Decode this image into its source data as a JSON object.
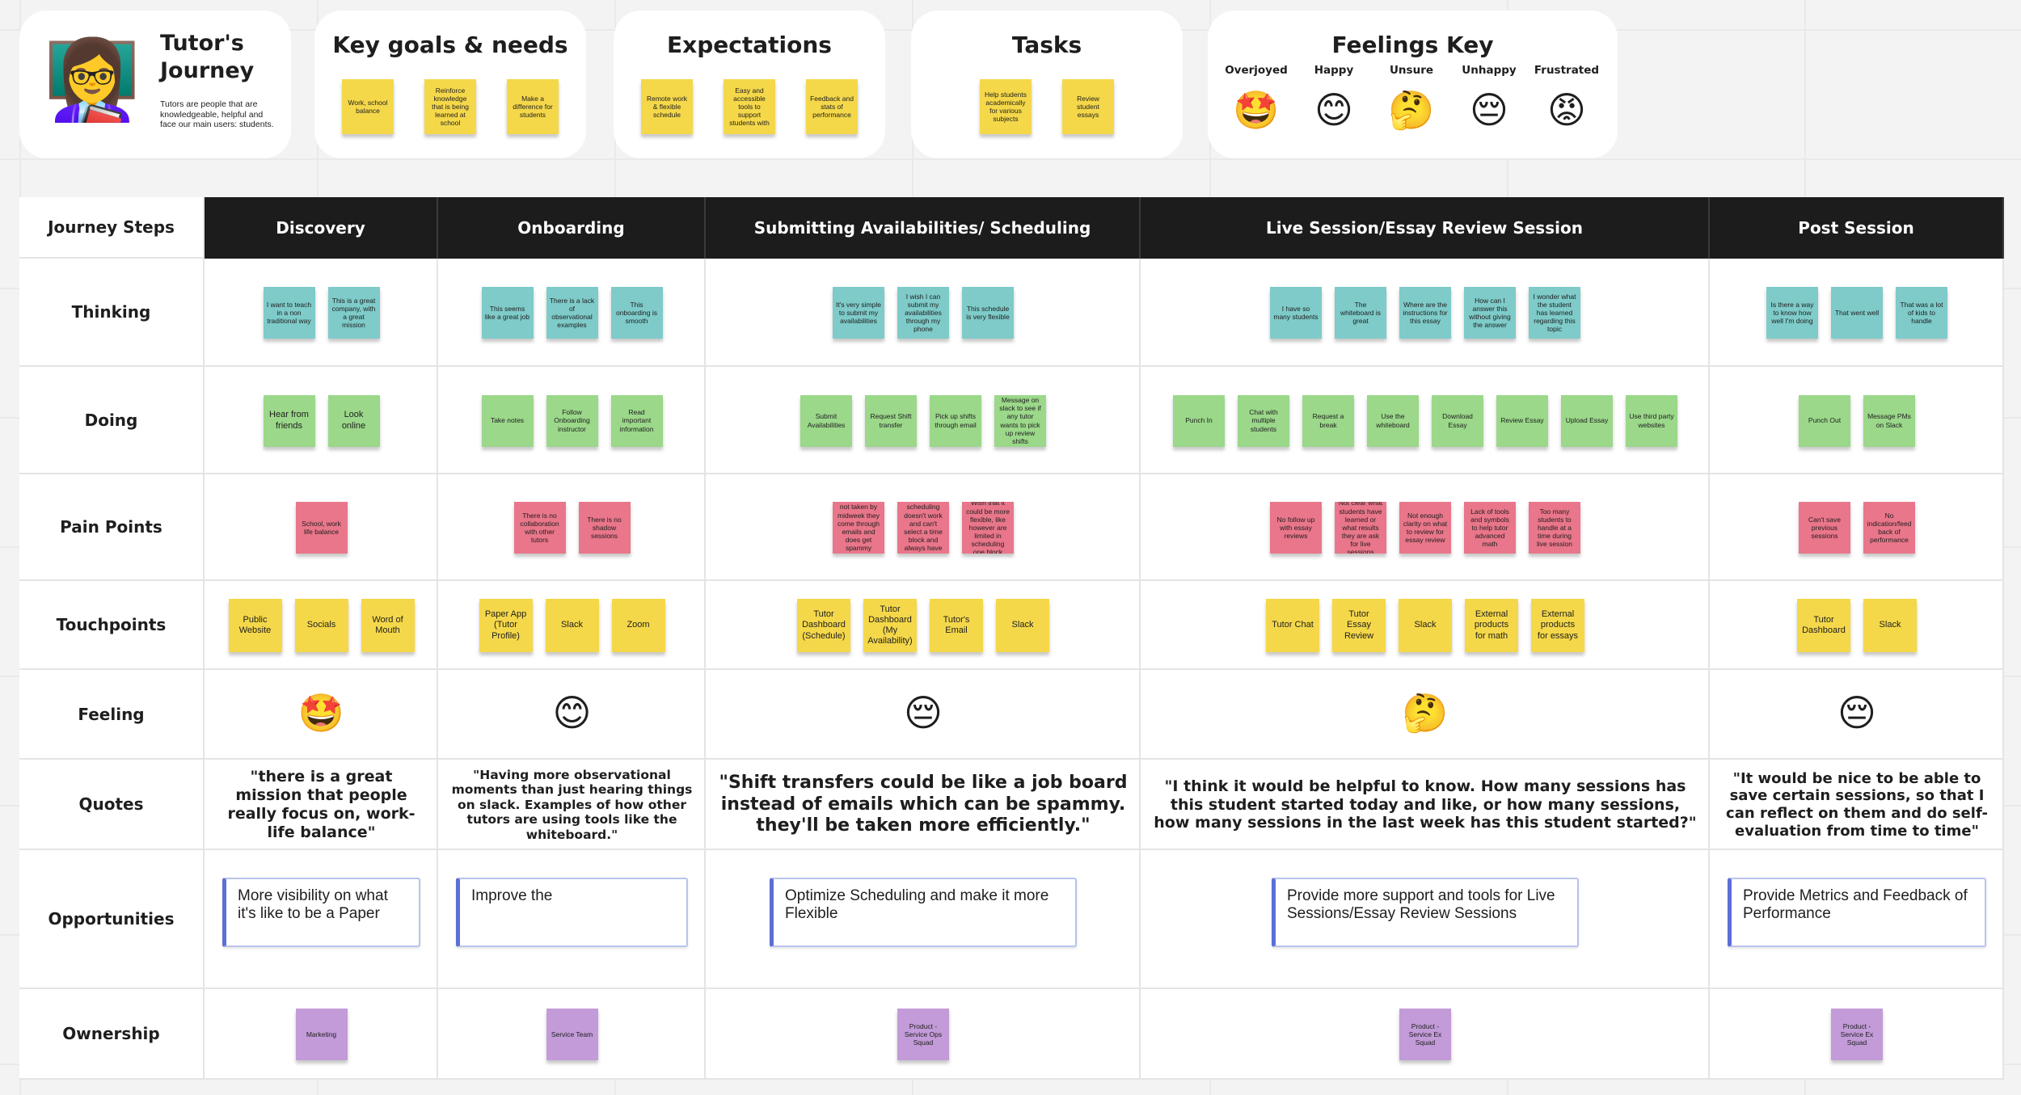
{
  "persona": {
    "icon": "👩‍🏫",
    "title": "Tutor's Journey",
    "description": "Tutors are people that are knowledgeable, helpful and face our main users: students."
  },
  "cards": [
    {
      "title": "Key goals & needs",
      "notes": [
        "Work, school balance",
        "Reinforce knowledge that is being learned at school",
        "Make a difference for students"
      ]
    },
    {
      "title": "Expectations",
      "notes": [
        "Remote work & flexible schedule",
        "Easy and accessible tools to support students with",
        "Feedback and stats of performance"
      ]
    },
    {
      "title": "Tasks",
      "notes": [
        "Help students academically for various subjects",
        "Review student essays"
      ]
    }
  ],
  "feelings_key": {
    "title": "Feelings Key",
    "items": [
      {
        "label": "Overjoyed",
        "emoji": "🤩"
      },
      {
        "label": "Happy",
        "emoji": "😊"
      },
      {
        "label": "Unsure",
        "emoji": "🤔"
      },
      {
        "label": "Unhappy",
        "emoji": "😔"
      },
      {
        "label": "Frustrated",
        "emoji": "😡"
      }
    ]
  },
  "table": {
    "corner": "Journey Steps",
    "stages": [
      "Discovery",
      "Onboarding",
      "Submitting Availabilities/ Scheduling",
      "Live Session/Essay Review Session",
      "Post Session"
    ],
    "rows": [
      {
        "label": "Thinking",
        "cells": [
          [
            "I want to teach in a non traditional way",
            "This is a great company, with a great mission"
          ],
          [
            "This seems like a great job",
            "There is a lack of observational examples",
            "This onboarding is smooth"
          ],
          [
            "It's very simple to submit my availabilities",
            "I wish I can submit my availabilities through my phone",
            "This schedule is very flexible"
          ],
          [
            "I have so many students",
            "The whiteboard is great",
            "Where are the instructions for this essay",
            "How can I answer this without giving the answer",
            "I wonder what the student has learned regarding this topic"
          ],
          [
            "Is there a way to know how well I'm doing",
            "That went well",
            "That was a lot of kids to handle"
          ]
        ]
      },
      {
        "label": "Doing",
        "cells": [
          [
            "Hear from friends",
            "Look online"
          ],
          [
            "Take notes",
            "Follow Onboarding instructor",
            "Read important information"
          ],
          [
            "Submit Availabilities",
            "Request Shift transfer",
            "Pick up shifts through email",
            "Message on slack to see if any tutor wants to pick up review shifts"
          ],
          [
            "Punch In",
            "Chat with multiple students",
            "Request a break",
            "Use the whiteboard",
            "Download Essay",
            "Review Essay",
            "Upload Essay",
            "Use third party websites"
          ],
          [
            "Punch Out",
            "Message PMs on Slack"
          ]
        ]
      },
      {
        "label": "Pain Points",
        "cells": [
          [
            "School, work life balance"
          ],
          [
            "There is no collaboration with other tutors",
            "There is no shadow sessions"
          ],
          [
            "If the shifts are not taken by midweek they come through emails and does get spammy because of it",
            "The mobile scheduling doesn't work and can't select a time block and always have to use a laptop",
            "Wish that it could be more flexible, like however are limited in scheduling one block"
          ],
          [
            "No follow up with essay reviews",
            "Not clear what students have learned or what results they are ask for live sessions",
            "Not enough clarity on what to review for essay review",
            "Lack of tools and symbols to help tutor advanced math",
            "Too many students to handle at a time during live session"
          ],
          [
            "Can't save previous sessions",
            "No indication/feedback of performance"
          ]
        ]
      },
      {
        "label": "Touchpoints",
        "cells": [
          [
            "Public Website",
            "Socials",
            "Word of Mouth"
          ],
          [
            "Paper App (Tutor Profile)",
            "Slack",
            "Zoom"
          ],
          [
            "Tutor Dashboard (Schedule)",
            "Tutor Dashboard (My Availability)",
            "Tutor's Email",
            "Slack"
          ],
          [
            "Tutor Chat",
            "Tutor Essay Review",
            "Slack",
            "External products for math",
            "External products for essays"
          ],
          [
            "Tutor Dashboard",
            "Slack"
          ]
        ]
      },
      {
        "label": "Feeling",
        "cells": [
          "🤩",
          "😊",
          "😔",
          "🤔",
          "😔"
        ]
      },
      {
        "label": "Quotes",
        "cells": [
          "\"there is a great mission that people really focus on, work-life balance\"",
          "\"Having more observational moments than just hearing things on slack. Examples of how other tutors are using tools like the whiteboard.\"",
          "\"Shift transfers could be like a job board instead of emails which can be spammy. they'll be taken more efficiently.\"",
          "\"I think it would be helpful to know. How many sessions has this student started today and like, or how many sessions, how many sessions in the last week has this student started?\"",
          "\"It would be nice to be able to save certain sessions, so that I can reflect on them and do self-evaluation from time to time\""
        ]
      },
      {
        "label": "Opportunities",
        "cells": [
          "More visibility on what it's like to be a Paper",
          "Improve the",
          "Optimize Scheduling and make it more Flexible",
          "Provide more support and tools for Live Sessions/Essay Review Sessions",
          "Provide Metrics and Feedback of Performance"
        ]
      },
      {
        "label": "Ownership",
        "cells": [
          [
            "Marketing"
          ],
          [
            "Service Team"
          ],
          [
            "Product - Service Ops Squad"
          ],
          [
            "Product - Service Ex Squad"
          ],
          [
            "Product - Service Ex Squad"
          ]
        ]
      }
    ]
  }
}
